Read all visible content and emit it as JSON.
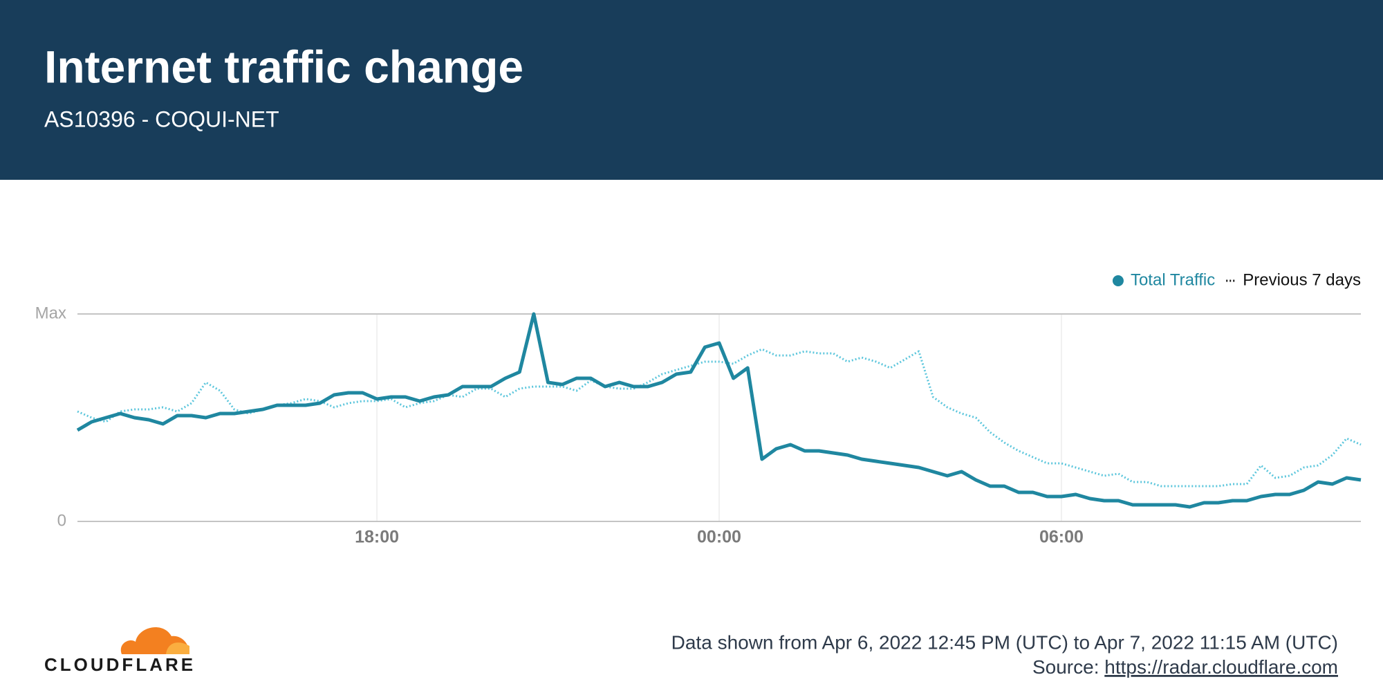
{
  "header": {
    "title": "Internet traffic change",
    "subtitle": "AS10396 - COQUI-NET"
  },
  "chart_data": {
    "type": "line",
    "x": [
      "12:45",
      "13:00",
      "13:15",
      "13:30",
      "13:45",
      "14:00",
      "14:15",
      "14:30",
      "14:45",
      "15:00",
      "15:15",
      "15:30",
      "15:45",
      "16:00",
      "16:15",
      "16:30",
      "16:45",
      "17:00",
      "17:15",
      "17:30",
      "17:45",
      "18:00",
      "18:15",
      "18:30",
      "18:45",
      "19:00",
      "19:15",
      "19:30",
      "19:45",
      "20:00",
      "20:15",
      "20:30",
      "20:45",
      "21:00",
      "21:15",
      "21:30",
      "21:45",
      "22:00",
      "22:15",
      "22:30",
      "22:45",
      "23:00",
      "23:15",
      "23:30",
      "23:45",
      "00:00",
      "00:15",
      "00:30",
      "00:45",
      "01:00",
      "01:15",
      "01:30",
      "01:45",
      "02:00",
      "02:15",
      "02:30",
      "02:45",
      "03:00",
      "03:15",
      "03:30",
      "03:45",
      "04:00",
      "04:15",
      "04:30",
      "04:45",
      "05:00",
      "05:15",
      "05:30",
      "05:45",
      "06:00",
      "06:15",
      "06:30",
      "06:45",
      "07:00",
      "07:15",
      "07:30",
      "07:45",
      "08:00",
      "08:15",
      "08:30",
      "08:45",
      "09:00",
      "09:15",
      "09:30",
      "09:45",
      "10:00",
      "10:15",
      "10:30",
      "10:45",
      "11:00",
      "11:15"
    ],
    "series": [
      {
        "name": "Total Traffic",
        "color": "#1f87a0",
        "style": "solid",
        "values": [
          0.44,
          0.48,
          0.5,
          0.52,
          0.5,
          0.49,
          0.47,
          0.51,
          0.51,
          0.5,
          0.52,
          0.52,
          0.53,
          0.54,
          0.56,
          0.56,
          0.56,
          0.57,
          0.61,
          0.62,
          0.62,
          0.59,
          0.6,
          0.6,
          0.58,
          0.6,
          0.61,
          0.65,
          0.65,
          0.65,
          0.69,
          0.72,
          1.0,
          0.67,
          0.66,
          0.69,
          0.69,
          0.65,
          0.67,
          0.65,
          0.65,
          0.67,
          0.71,
          0.72,
          0.84,
          0.86,
          0.69,
          0.74,
          0.3,
          0.35,
          0.37,
          0.34,
          0.34,
          0.33,
          0.32,
          0.3,
          0.29,
          0.28,
          0.27,
          0.26,
          0.24,
          0.22,
          0.24,
          0.2,
          0.17,
          0.17,
          0.14,
          0.14,
          0.12,
          0.12,
          0.13,
          0.11,
          0.1,
          0.1,
          0.08,
          0.08,
          0.08,
          0.08,
          0.07,
          0.09,
          0.09,
          0.1,
          0.1,
          0.12,
          0.13,
          0.13,
          0.15,
          0.19,
          0.18,
          0.21,
          0.2
        ]
      },
      {
        "name": "Previous 7 days",
        "color": "#5cc6dc",
        "style": "dotted",
        "values": [
          0.53,
          0.5,
          0.48,
          0.53,
          0.54,
          0.54,
          0.55,
          0.53,
          0.57,
          0.67,
          0.63,
          0.54,
          0.52,
          0.54,
          0.56,
          0.57,
          0.59,
          0.58,
          0.55,
          0.57,
          0.58,
          0.58,
          0.59,
          0.55,
          0.57,
          0.58,
          0.61,
          0.6,
          0.64,
          0.64,
          0.6,
          0.64,
          0.65,
          0.65,
          0.65,
          0.63,
          0.68,
          0.65,
          0.64,
          0.64,
          0.67,
          0.71,
          0.73,
          0.75,
          0.77,
          0.77,
          0.76,
          0.8,
          0.83,
          0.8,
          0.8,
          0.82,
          0.81,
          0.81,
          0.77,
          0.79,
          0.77,
          0.74,
          0.78,
          0.82,
          0.6,
          0.55,
          0.52,
          0.5,
          0.43,
          0.38,
          0.34,
          0.31,
          0.28,
          0.28,
          0.26,
          0.24,
          0.22,
          0.23,
          0.19,
          0.19,
          0.17,
          0.17,
          0.17,
          0.17,
          0.17,
          0.18,
          0.18,
          0.27,
          0.21,
          0.22,
          0.26,
          0.27,
          0.32,
          0.4,
          0.37
        ]
      }
    ],
    "ylim": [
      0,
      1
    ],
    "yticks": [
      0,
      {
        "value": 1,
        "label": "Max"
      }
    ],
    "xticks": [
      "18:00",
      "00:00",
      "06:00"
    ],
    "grid": true,
    "legend": "top-right"
  },
  "footer": {
    "date_range": "Data shown from Apr 6, 2022 12:45 PM (UTC) to Apr 7, 2022 11:15 AM (UTC)",
    "source_label": "Source:",
    "source_url": "https://radar.cloudflare.com"
  },
  "logo": {
    "text": "CLOUDFLARE"
  }
}
